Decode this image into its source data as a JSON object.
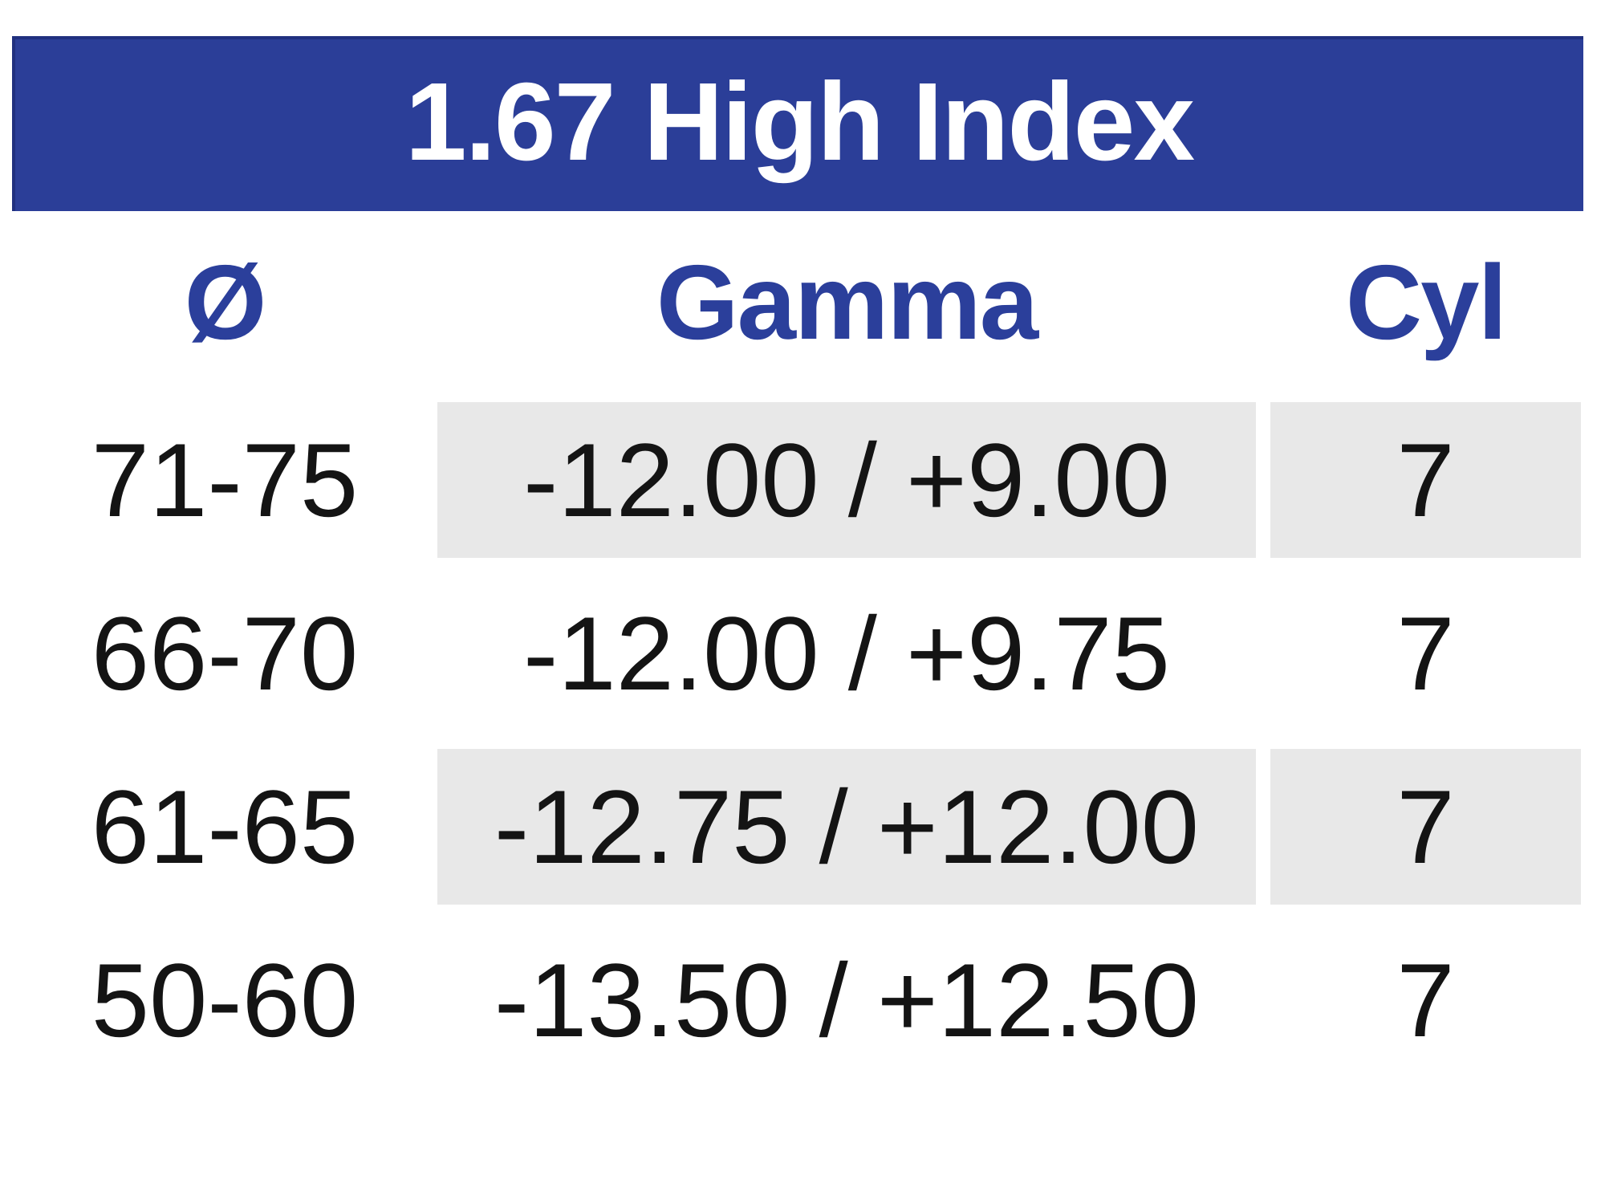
{
  "table": {
    "title": "1.67 High Index",
    "columns": [
      {
        "id": "diameter",
        "label": "Ø"
      },
      {
        "id": "gamma",
        "label": "Gamma"
      },
      {
        "id": "cyl",
        "label": "Cyl"
      }
    ],
    "rows": [
      {
        "diameter": "71-75",
        "gamma": "-12.00 / +9.00",
        "cyl": "7",
        "shaded": true
      },
      {
        "diameter": "66-70",
        "gamma": "-12.00 / +9.75",
        "cyl": "7",
        "shaded": false
      },
      {
        "diameter": "61-65",
        "gamma": "-12.75 / +12.00",
        "cyl": "7",
        "shaded": true
      },
      {
        "diameter": "50-60",
        "gamma": "-13.50 / +12.50",
        "cyl": "7",
        "shaded": false
      }
    ],
    "colors": {
      "title_bar_bg": "#2B3E98",
      "title_bar_border": "#20307F",
      "title_text": "#FFFFFF",
      "column_header_text": "#2B3F9B",
      "shaded_cell_bg": "#E8E8E8",
      "data_text": "#141414",
      "page_bg": "#FFFFFF"
    }
  }
}
